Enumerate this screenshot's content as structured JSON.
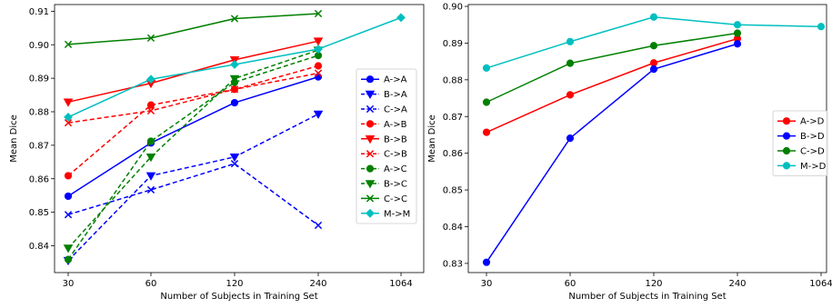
{
  "chart_data": [
    {
      "type": "line",
      "xlabel": "Number of Subjects in Training Set",
      "ylabel": "Mean Dice",
      "x_ticks": [
        "30",
        "60",
        "120",
        "240",
        "1064"
      ],
      "ylim": [
        0.832,
        0.912
      ],
      "y_ticks": [
        0.84,
        0.85,
        0.86,
        0.87,
        0.88,
        0.89,
        0.9,
        0.91
      ],
      "grid": false,
      "legend_position": "right",
      "series": [
        {
          "name": "A->A",
          "color": "#0000ff",
          "dash": "solid",
          "marker": "circle",
          "x": [
            "30",
            "60",
            "120",
            "240"
          ],
          "values": [
            0.8548,
            0.8707,
            0.8827,
            0.8904
          ]
        },
        {
          "name": "B->A",
          "color": "#0000ff",
          "dash": "dashed",
          "marker": "tri-down",
          "x": [
            "30",
            "60",
            "120",
            "240"
          ],
          "values": [
            0.8356,
            0.8609,
            0.8665,
            0.8793
          ]
        },
        {
          "name": "C->A",
          "color": "#0000ff",
          "dash": "dashed",
          "marker": "x",
          "x": [
            "30",
            "60",
            "120",
            "240"
          ],
          "values": [
            0.8493,
            0.8567,
            0.8645,
            0.8461
          ]
        },
        {
          "name": "A->B",
          "color": "#ff0000",
          "dash": "dashed",
          "marker": "circle",
          "x": [
            "30",
            "60",
            "120",
            "240"
          ],
          "values": [
            0.8609,
            0.882,
            0.8867,
            0.8937
          ]
        },
        {
          "name": "B->B",
          "color": "#ff0000",
          "dash": "solid",
          "marker": "tri-down",
          "x": [
            "30",
            "60",
            "120",
            "240"
          ],
          "values": [
            0.8829,
            0.8885,
            0.8955,
            0.9011
          ]
        },
        {
          "name": "C->B",
          "color": "#ff0000",
          "dash": "dashed",
          "marker": "x",
          "x": [
            "30",
            "60",
            "120",
            "240"
          ],
          "values": [
            0.8767,
            0.8803,
            0.8867,
            0.8915
          ]
        },
        {
          "name": "A->C",
          "color": "#008000",
          "dash": "dashed",
          "marker": "circle",
          "x": [
            "30",
            "60",
            "120",
            "240"
          ],
          "values": [
            0.8359,
            0.8712,
            0.8888,
            0.8968
          ]
        },
        {
          "name": "B->C",
          "color": "#008000",
          "dash": "dashed",
          "marker": "tri-down",
          "x": [
            "30",
            "60",
            "120",
            "240"
          ],
          "values": [
            0.8393,
            0.8665,
            0.8899,
            0.8984
          ]
        },
        {
          "name": "C->C",
          "color": "#008000",
          "dash": "solid",
          "marker": "x",
          "x": [
            "30",
            "60",
            "120",
            "240"
          ],
          "values": [
            0.9001,
            0.902,
            0.9078,
            0.9093
          ]
        },
        {
          "name": "M->M",
          "color": "#00bfbf",
          "dash": "solid",
          "marker": "diamond",
          "x": [
            "30",
            "60",
            "120",
            "240",
            "1064"
          ],
          "values": [
            0.8784,
            0.8897,
            0.8941,
            0.8987,
            0.9081
          ]
        }
      ]
    },
    {
      "type": "line",
      "xlabel": "Number of Subjects in Training Set",
      "ylabel": "Mean Dice",
      "x_ticks": [
        "30",
        "60",
        "120",
        "240",
        "1064"
      ],
      "ylim": [
        0.8275,
        0.9005
      ],
      "y_ticks": [
        0.83,
        0.84,
        0.85,
        0.86,
        0.87,
        0.88,
        0.89,
        0.9
      ],
      "grid": false,
      "legend_position": "right",
      "series": [
        {
          "name": "A->D",
          "color": "#ff0000",
          "dash": "solid",
          "marker": "circle",
          "x": [
            "30",
            "60",
            "120",
            "240"
          ],
          "values": [
            0.8657,
            0.8759,
            0.8846,
            0.8912
          ]
        },
        {
          "name": "B->D",
          "color": "#0000ff",
          "dash": "solid",
          "marker": "circle",
          "x": [
            "30",
            "60",
            "120",
            "240"
          ],
          "values": [
            0.8303,
            0.8641,
            0.8829,
            0.8898
          ]
        },
        {
          "name": "C->D",
          "color": "#008000",
          "dash": "solid",
          "marker": "circle",
          "x": [
            "30",
            "60",
            "120",
            "240"
          ],
          "values": [
            0.8739,
            0.8845,
            0.8893,
            0.8927
          ]
        },
        {
          "name": "M->D",
          "color": "#00bfbf",
          "dash": "solid",
          "marker": "circle",
          "x": [
            "30",
            "60",
            "120",
            "240",
            "1064"
          ],
          "values": [
            0.8832,
            0.8904,
            0.8971,
            0.895,
            0.8945
          ]
        }
      ]
    }
  ]
}
